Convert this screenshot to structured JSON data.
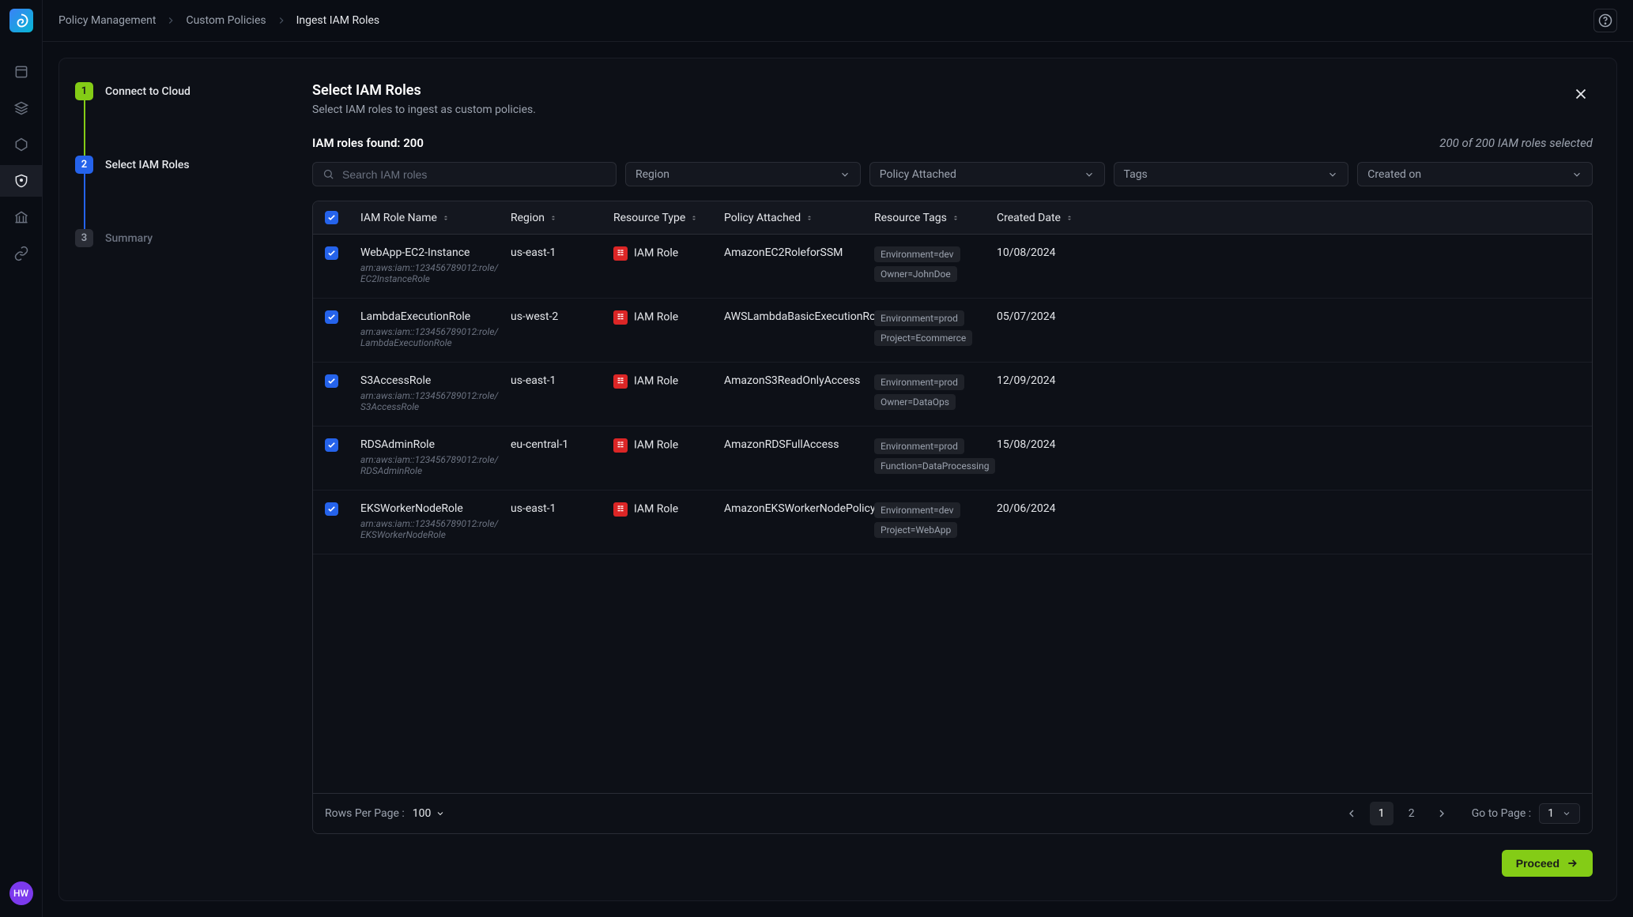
{
  "breadcrumb": [
    "Policy Management",
    "Custom Policies",
    "Ingest IAM Roles"
  ],
  "avatar": "HW",
  "steps": [
    {
      "num": "1",
      "label": "Connect to Cloud",
      "state": "done"
    },
    {
      "num": "2",
      "label": "Select IAM Roles",
      "state": "active"
    },
    {
      "num": "3",
      "label": "Summary",
      "state": "pending"
    }
  ],
  "page": {
    "title": "Select IAM Roles",
    "subtitle": "Select IAM roles to ingest as custom policies.",
    "found_label": "IAM roles found: 200",
    "selected_label": "200 of 200 IAM roles selected",
    "search_placeholder": "Search IAM roles",
    "filters": [
      "Region",
      "Policy Attached",
      "Tags",
      "Created on"
    ],
    "columns": [
      "IAM Role Name",
      "Region",
      "Resource Type",
      "Policy Attached",
      "Resource Tags",
      "Created Date"
    ],
    "rows": [
      {
        "name": "WebApp-EC2-Instance",
        "arn": "arn:aws:iam::123456789012:role/EC2InstanceRole",
        "region": "us-east-1",
        "type": "IAM Role",
        "policy": "AmazonEC2RoleforSSM",
        "tags": [
          "Environment=dev",
          "Owner=JohnDoe"
        ],
        "date": "10/08/2024"
      },
      {
        "name": "LambdaExecutionRole",
        "arn": "arn:aws:iam::123456789012:role/LambdaExecutionRole",
        "region": "us-west-2",
        "type": "IAM Role",
        "policy": "AWSLambdaBasicExecutionRole",
        "tags": [
          "Environment=prod",
          "Project=Ecommerce"
        ],
        "date": "05/07/2024"
      },
      {
        "name": "S3AccessRole",
        "arn": "arn:aws:iam::123456789012:role/S3AccessRole",
        "region": "us-east-1",
        "type": "IAM Role",
        "policy": "AmazonS3ReadOnlyAccess",
        "tags": [
          "Environment=prod",
          "Owner=DataOps"
        ],
        "date": "12/09/2024"
      },
      {
        "name": "RDSAdminRole",
        "arn": "arn:aws:iam::123456789012:role/RDSAdminRole",
        "region": "eu-central-1",
        "type": "IAM Role",
        "policy": "AmazonRDSFullAccess",
        "tags": [
          "Environment=prod",
          "Function=DataProcessing"
        ],
        "date": "15/08/2024"
      },
      {
        "name": "EKSWorkerNodeRole",
        "arn": "arn:aws:iam::123456789012:role/EKSWorkerNodeRole",
        "region": "us-east-1",
        "type": "IAM Role",
        "policy": "AmazonEKSWorkerNodePolicy",
        "tags": [
          "Environment=dev",
          "Project=WebApp"
        ],
        "date": "20/06/2024"
      }
    ],
    "rows_per_label": "Rows Per Page :",
    "rows_per_value": "100",
    "pages": [
      "1",
      "2"
    ],
    "current_page": "1",
    "goto_label": "Go to Page :",
    "goto_value": "1",
    "proceed": "Proceed"
  },
  "colors": {
    "primary": "#2563eb",
    "success": "#84cc16",
    "danger": "#dc2626"
  }
}
